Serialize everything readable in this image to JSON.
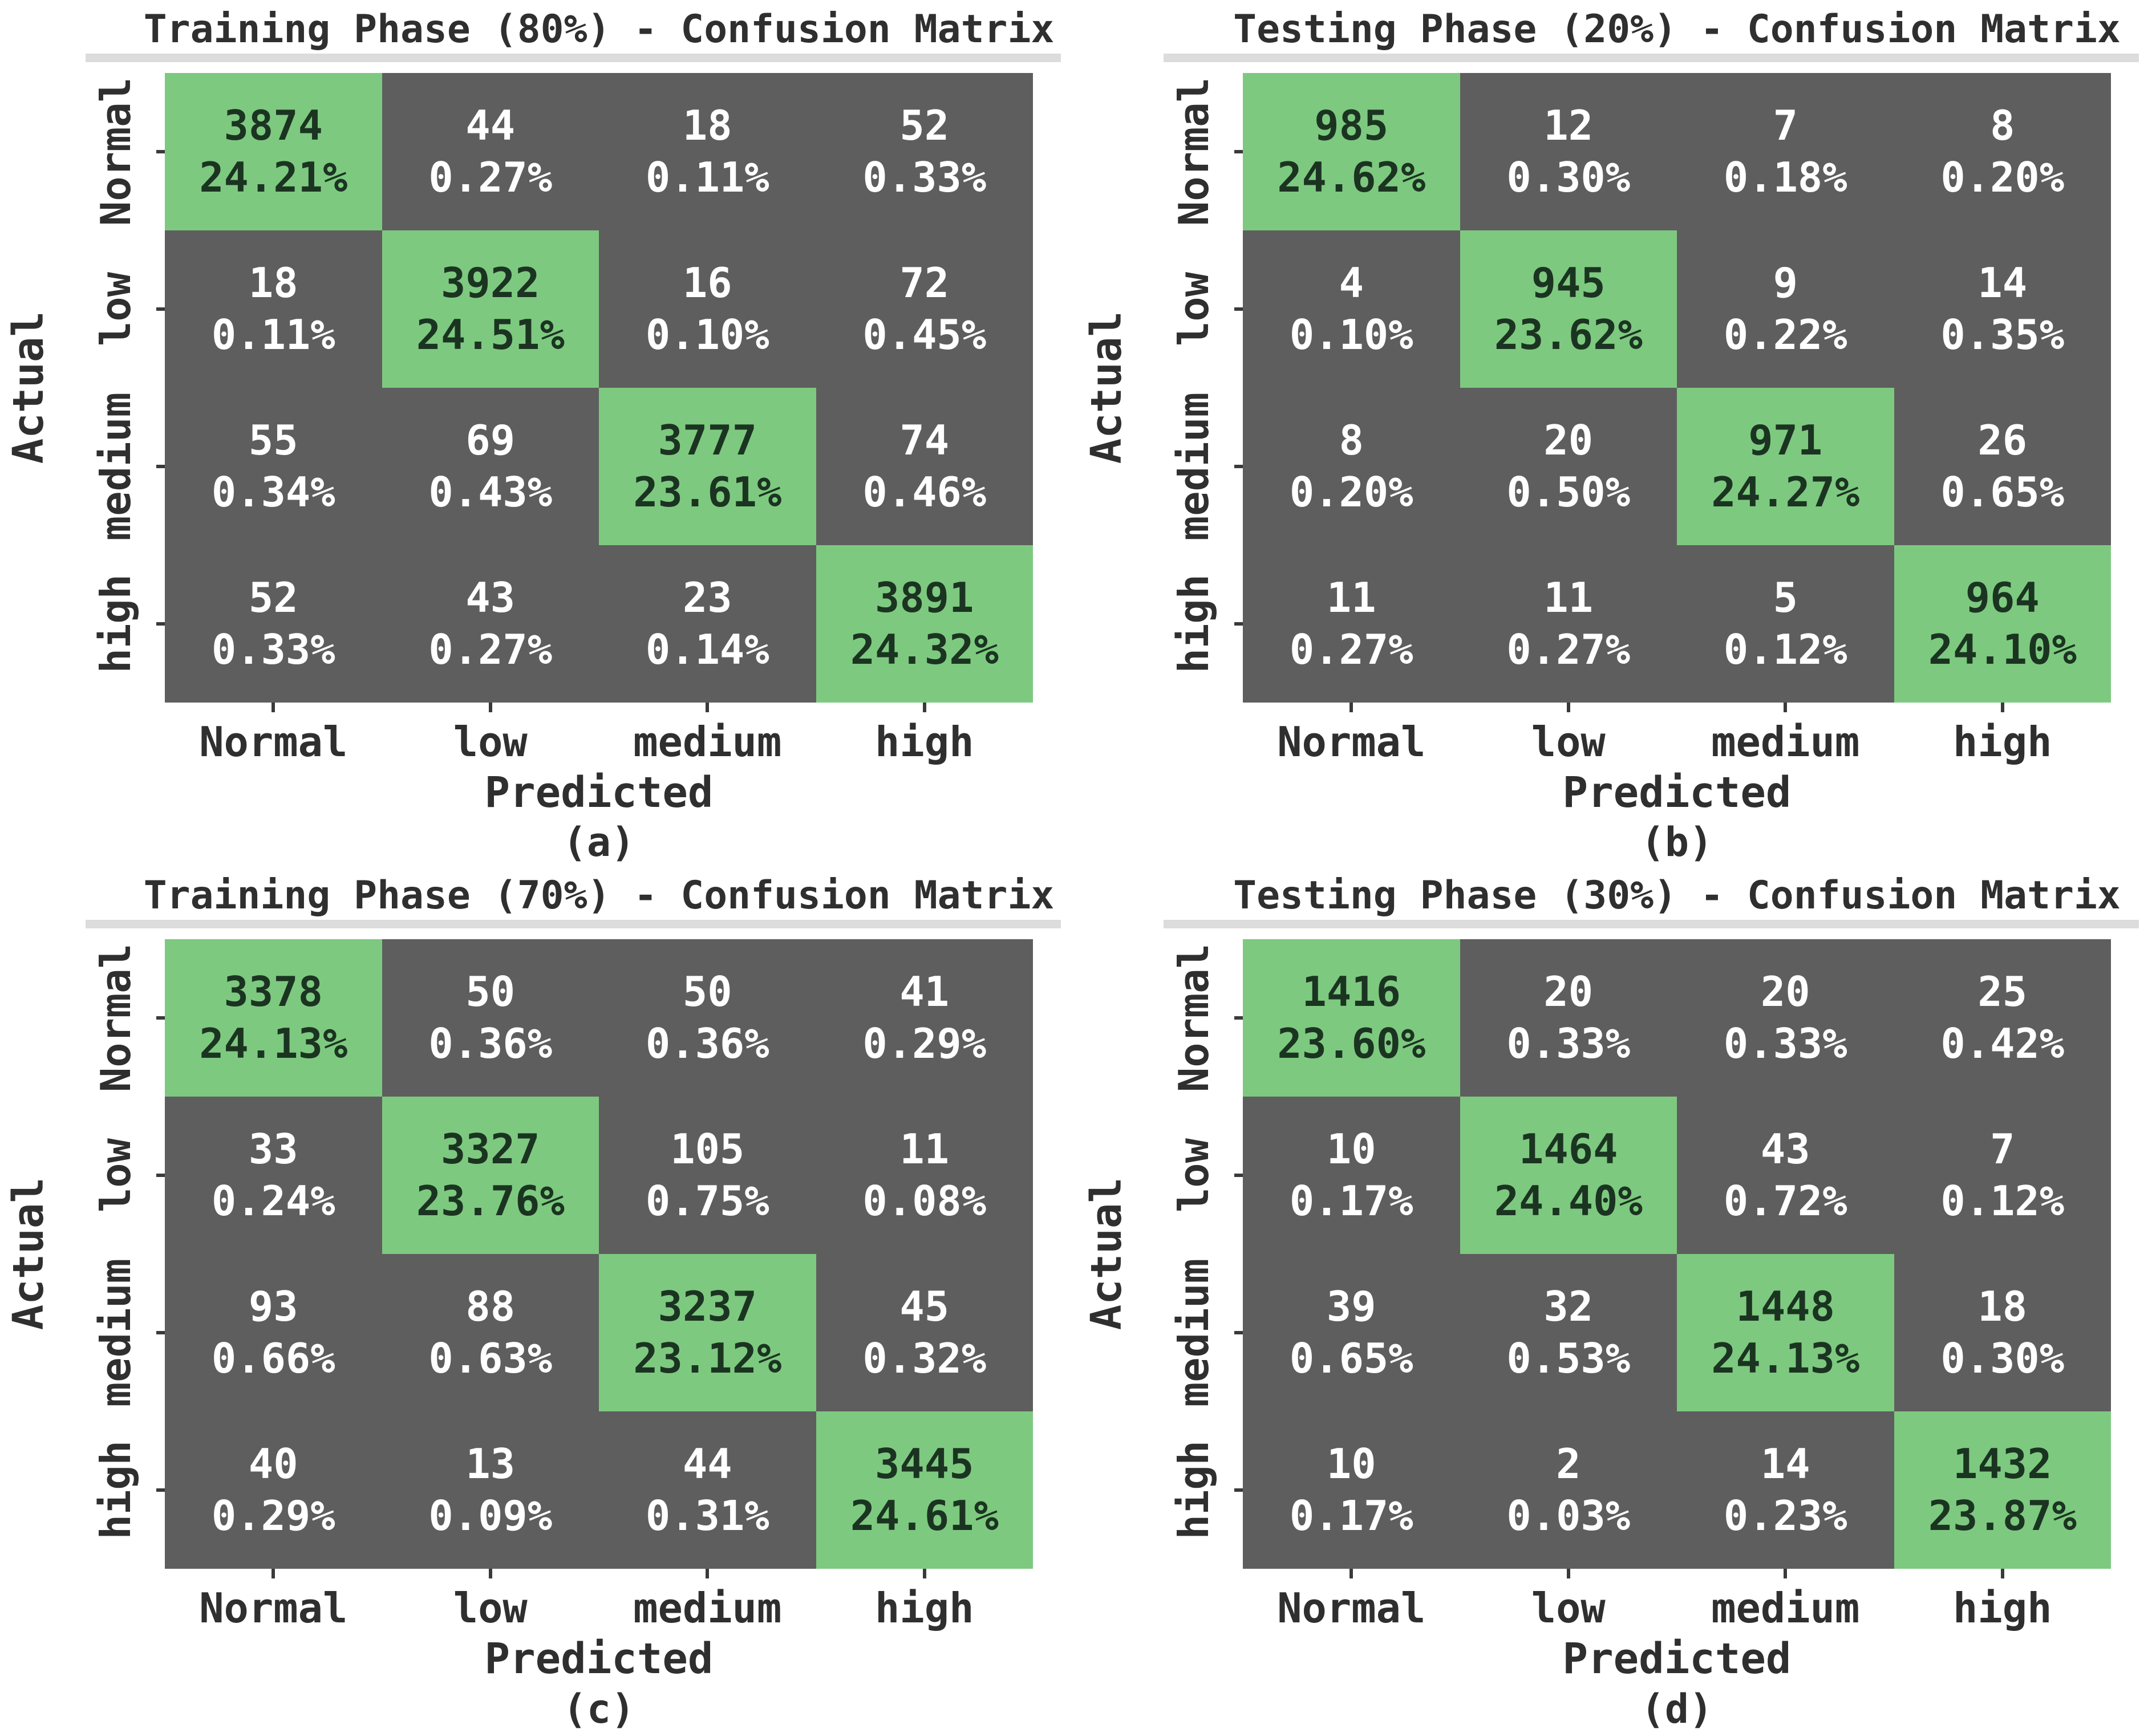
{
  "styles": {
    "diagonal_color": "#7ec980",
    "off_diagonal_color": "#5e5e5e",
    "diagonal_text_color": "#1b3421",
    "off_diagonal_text_color": "#ffffff",
    "label_color": "#2f2f2f",
    "tick_color": "#3a3a3a",
    "band_color": "#dcdcdc",
    "background": "#ffffff"
  },
  "chart_data": [
    {
      "type": "heatmap",
      "caption": "(a)",
      "title": "Training Phase (80%) - Confusion Matrix",
      "xlabel": "Predicted",
      "ylabel": "Actual",
      "x_categories": [
        "Normal",
        "low",
        "medium",
        "high"
      ],
      "y_categories": [
        "Normal",
        "low",
        "medium",
        "high"
      ],
      "values": [
        [
          3874,
          44,
          18,
          52
        ],
        [
          18,
          3922,
          16,
          72
        ],
        [
          55,
          69,
          3777,
          74
        ],
        [
          52,
          43,
          23,
          3891
        ]
      ],
      "percent_labels": [
        [
          "24.21%",
          "0.27%",
          "0.11%",
          "0.33%"
        ],
        [
          "0.11%",
          "24.51%",
          "0.10%",
          "0.45%"
        ],
        [
          "0.34%",
          "0.43%",
          "23.61%",
          "0.46%"
        ],
        [
          "0.33%",
          "0.27%",
          "0.14%",
          "24.32%"
        ]
      ],
      "diagonal_highlighted": true,
      "legend": "none",
      "grid": "off"
    },
    {
      "type": "heatmap",
      "caption": "(b)",
      "title": "Testing Phase (20%) - Confusion Matrix",
      "xlabel": "Predicted",
      "ylabel": "Actual",
      "x_categories": [
        "Normal",
        "low",
        "medium",
        "high"
      ],
      "y_categories": [
        "Normal",
        "low",
        "medium",
        "high"
      ],
      "values": [
        [
          985,
          12,
          7,
          8
        ],
        [
          4,
          945,
          9,
          14
        ],
        [
          8,
          20,
          971,
          26
        ],
        [
          11,
          11,
          5,
          964
        ]
      ],
      "percent_labels": [
        [
          "24.62%",
          "0.30%",
          "0.18%",
          "0.20%"
        ],
        [
          "0.10%",
          "23.62%",
          "0.22%",
          "0.35%"
        ],
        [
          "0.20%",
          "0.50%",
          "24.27%",
          "0.65%"
        ],
        [
          "0.27%",
          "0.27%",
          "0.12%",
          "24.10%"
        ]
      ],
      "diagonal_highlighted": true,
      "legend": "none",
      "grid": "off"
    },
    {
      "type": "heatmap",
      "caption": "(c)",
      "title": "Training Phase (70%) - Confusion Matrix",
      "xlabel": "Predicted",
      "ylabel": "Actual",
      "x_categories": [
        "Normal",
        "low",
        "medium",
        "high"
      ],
      "y_categories": [
        "Normal",
        "low",
        "medium",
        "high"
      ],
      "values": [
        [
          3378,
          50,
          50,
          41
        ],
        [
          33,
          3327,
          105,
          11
        ],
        [
          93,
          88,
          3237,
          45
        ],
        [
          40,
          13,
          44,
          3445
        ]
      ],
      "percent_labels": [
        [
          "24.13%",
          "0.36%",
          "0.36%",
          "0.29%"
        ],
        [
          "0.24%",
          "23.76%",
          "0.75%",
          "0.08%"
        ],
        [
          "0.66%",
          "0.63%",
          "23.12%",
          "0.32%"
        ],
        [
          "0.29%",
          "0.09%",
          "0.31%",
          "24.61%"
        ]
      ],
      "diagonal_highlighted": true,
      "legend": "none",
      "grid": "off"
    },
    {
      "type": "heatmap",
      "caption": "(d)",
      "title": "Testing Phase (30%) - Confusion Matrix",
      "xlabel": "Predicted",
      "ylabel": "Actual",
      "x_categories": [
        "Normal",
        "low",
        "medium",
        "high"
      ],
      "y_categories": [
        "Normal",
        "low",
        "medium",
        "high"
      ],
      "values": [
        [
          1416,
          20,
          20,
          25
        ],
        [
          10,
          1464,
          43,
          7
        ],
        [
          39,
          32,
          1448,
          18
        ],
        [
          10,
          2,
          14,
          1432
        ]
      ],
      "percent_labels": [
        [
          "23.60%",
          "0.33%",
          "0.33%",
          "0.42%"
        ],
        [
          "0.17%",
          "24.40%",
          "0.72%",
          "0.12%"
        ],
        [
          "0.65%",
          "0.53%",
          "24.13%",
          "0.30%"
        ],
        [
          "0.17%",
          "0.03%",
          "0.23%",
          "23.87%"
        ]
      ],
      "diagonal_highlighted": true,
      "legend": "none",
      "grid": "off"
    }
  ]
}
